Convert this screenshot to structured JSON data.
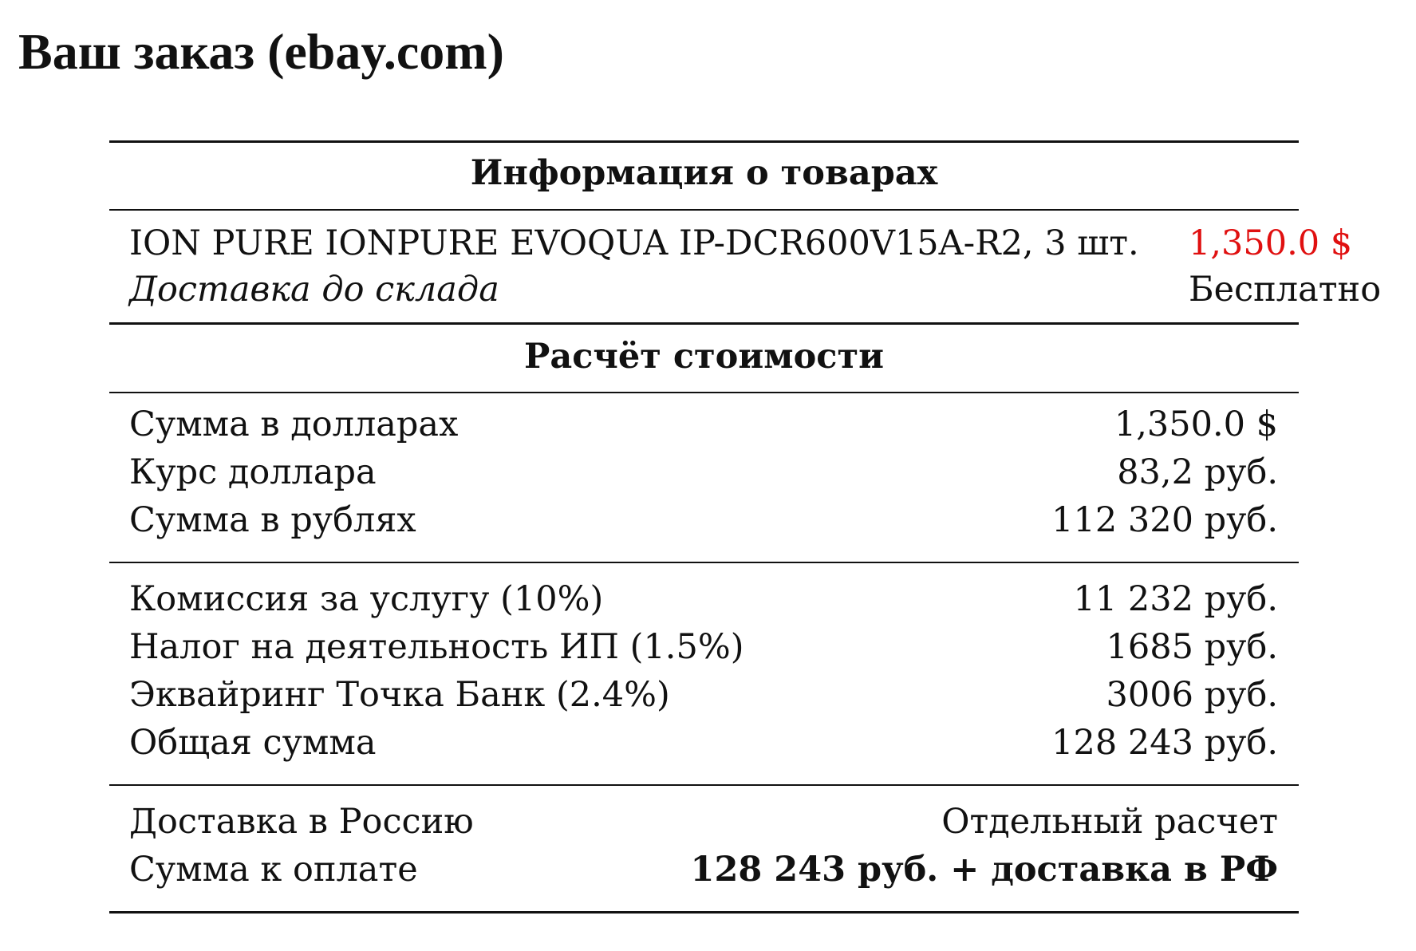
{
  "title": "Ваш заказ (ebay.com)",
  "products": {
    "heading": "Информация о товарах",
    "item": {
      "name": "ION PURE IONPURE EVOQUA IP-DCR600V15A-R2, 3 шт.",
      "price": "1,350.0 $"
    },
    "delivery": {
      "label": "Доставка до склада",
      "value": "Бесплатно"
    }
  },
  "calculation": {
    "heading": "Расчёт стоимости",
    "groups": [
      [
        {
          "label": "Сумма в долларах",
          "value": "1,350.0 $"
        },
        {
          "label": "Курс доллара",
          "value": "83,2 руб."
        },
        {
          "label": "Сумма в рублях",
          "value": "112 320 руб."
        }
      ],
      [
        {
          "label": "Комиссия за услугу (10%)",
          "value": "11 232 руб."
        },
        {
          "label": "Налог на деятельность ИП (1.5%)",
          "value": "1685 руб."
        },
        {
          "label": "Эквайринг Точка Банк (2.4%)",
          "value": "3006 руб."
        },
        {
          "label": "Общая сумма",
          "value": "128 243 руб."
        }
      ],
      [
        {
          "label": "Доставка в Россию",
          "value": "Отдельный расчет"
        },
        {
          "label": "Сумма к оплате",
          "value": "128 243 руб. + доставка в РФ"
        }
      ]
    ]
  }
}
